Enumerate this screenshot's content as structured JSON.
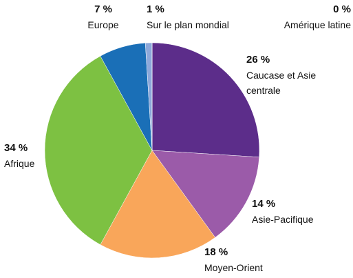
{
  "chart_data": {
    "type": "pie",
    "categories": [
      "Caucase et Asie centrale",
      "Asie-Pacifique",
      "Moyen-Orient",
      "Afrique",
      "Europe",
      "Sur le plan mondial",
      "Amérique latine"
    ],
    "values": [
      26,
      14,
      18,
      34,
      7,
      1,
      0
    ],
    "value_labels": [
      "26 %",
      "14 %",
      "18 %",
      "34 %",
      "7 %",
      "1 %",
      "0 %"
    ],
    "colors": [
      "#5c2d8a",
      "#9b5ba9",
      "#f9a65a",
      "#7dc142",
      "#1a6fb7",
      "#8da8da",
      "#b0b0b0"
    ]
  }
}
